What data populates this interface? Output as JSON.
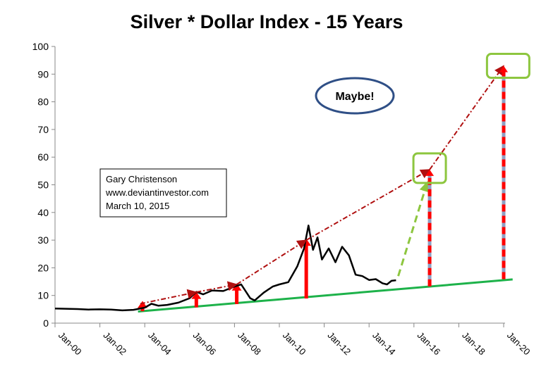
{
  "chart_data": {
    "type": "line",
    "title": "Silver * Dollar Index - 15 Years",
    "xlabel": "",
    "ylabel": "",
    "ylim": [
      0,
      100
    ],
    "y_ticks": [
      0,
      10,
      20,
      30,
      40,
      50,
      60,
      70,
      80,
      90,
      100
    ],
    "x_ticks": [
      "Jan-00",
      "Jan-02",
      "Jan-04",
      "Jan-06",
      "Jan-08",
      "Jan-10",
      "Jan-12",
      "Jan-14",
      "Jan-16",
      "Jan-18",
      "Jan-20"
    ],
    "x_tick_years": [
      2000,
      2002,
      2004,
      2006,
      2008,
      2010,
      2012,
      2014,
      2016,
      2018,
      2020
    ],
    "xlim": [
      2000,
      2020
    ],
    "grid": false,
    "legend": "none",
    "series": [
      {
        "color": "#000000",
        "points": [
          [
            2000.0,
            5.3
          ],
          [
            2000.5,
            5.2
          ],
          [
            2001.0,
            5.1
          ],
          [
            2001.5,
            4.9
          ],
          [
            2002.0,
            5.0
          ],
          [
            2002.5,
            4.9
          ],
          [
            2003.0,
            4.6
          ],
          [
            2003.5,
            4.8
          ],
          [
            2004.0,
            5.6
          ],
          [
            2004.3,
            7.0
          ],
          [
            2004.6,
            6.3
          ],
          [
            2005.0,
            6.6
          ],
          [
            2005.5,
            7.4
          ],
          [
            2006.0,
            9.0
          ],
          [
            2006.3,
            11.3
          ],
          [
            2006.6,
            10.4
          ],
          [
            2007.0,
            11.8
          ],
          [
            2007.5,
            11.6
          ],
          [
            2008.0,
            13.2
          ],
          [
            2008.3,
            14.0
          ],
          [
            2008.7,
            9.0
          ],
          [
            2008.9,
            8.2
          ],
          [
            2009.3,
            11.0
          ],
          [
            2009.7,
            13.2
          ],
          [
            2010.0,
            14.0
          ],
          [
            2010.4,
            14.8
          ],
          [
            2010.8,
            20.5
          ],
          [
            2011.1,
            27.0
          ],
          [
            2011.3,
            35.3
          ],
          [
            2011.5,
            26.5
          ],
          [
            2011.7,
            31.0
          ],
          [
            2011.9,
            23.0
          ],
          [
            2012.2,
            27.0
          ],
          [
            2012.5,
            22.0
          ],
          [
            2012.8,
            27.6
          ],
          [
            2013.1,
            24.5
          ],
          [
            2013.4,
            17.5
          ],
          [
            2013.7,
            17.0
          ],
          [
            2014.0,
            15.6
          ],
          [
            2014.3,
            15.9
          ],
          [
            2014.6,
            14.4
          ],
          [
            2014.8,
            14.0
          ],
          [
            2015.0,
            15.3
          ],
          [
            2015.2,
            15.5
          ]
        ]
      }
    ],
    "annotations": {
      "info_box_lines": [
        "Gary Christenson",
        "www.deviantinvestor.com",
        "March 10, 2015"
      ],
      "maybe_label": "Maybe!",
      "support_line": {
        "color": "#1DB24A",
        "from": [
          2003.7,
          4.2
        ],
        "to": [
          2020.4,
          15.8
        ]
      },
      "red_trend_line": {
        "color": "#B01010",
        "points": [
          [
            2003.8,
            7.0
          ],
          [
            2006.3,
            11.2
          ],
          [
            2008.1,
            14.0
          ],
          [
            2011.2,
            30.0
          ],
          [
            2016.7,
            55.5
          ],
          [
            2020.0,
            93.0
          ]
        ]
      },
      "green_dashed_arrow": {
        "color": "#8DC63F",
        "from": [
          2015.3,
          17.0
        ],
        "to": [
          2016.6,
          51.0
        ]
      },
      "red_up_arrows": [
        {
          "x": 2003.9,
          "from": 4.3,
          "to": 8.0
        },
        {
          "x": 2006.3,
          "from": 5.7,
          "to": 11.3
        },
        {
          "x": 2008.1,
          "from": 6.9,
          "to": 14.3
        },
        {
          "x": 2011.2,
          "from": 8.9,
          "to": 30.5
        }
      ],
      "dashed_up_arrows": [
        {
          "x": 2016.7,
          "from": 13.3,
          "to": 55.5
        },
        {
          "x": 2020.0,
          "from": 15.9,
          "to": 93.0
        }
      ],
      "green_boxes": [
        {
          "x": 2016.7,
          "y": 56.0
        },
        {
          "x": 2020.2,
          "y": 93.0
        }
      ],
      "accent_colors": {
        "price": "#000000",
        "support": "#1DB24A",
        "arrows": "#FF0000",
        "trend": "#B01010",
        "target_box": "#8DC63F",
        "ellipse": "#2F4F86"
      }
    }
  }
}
